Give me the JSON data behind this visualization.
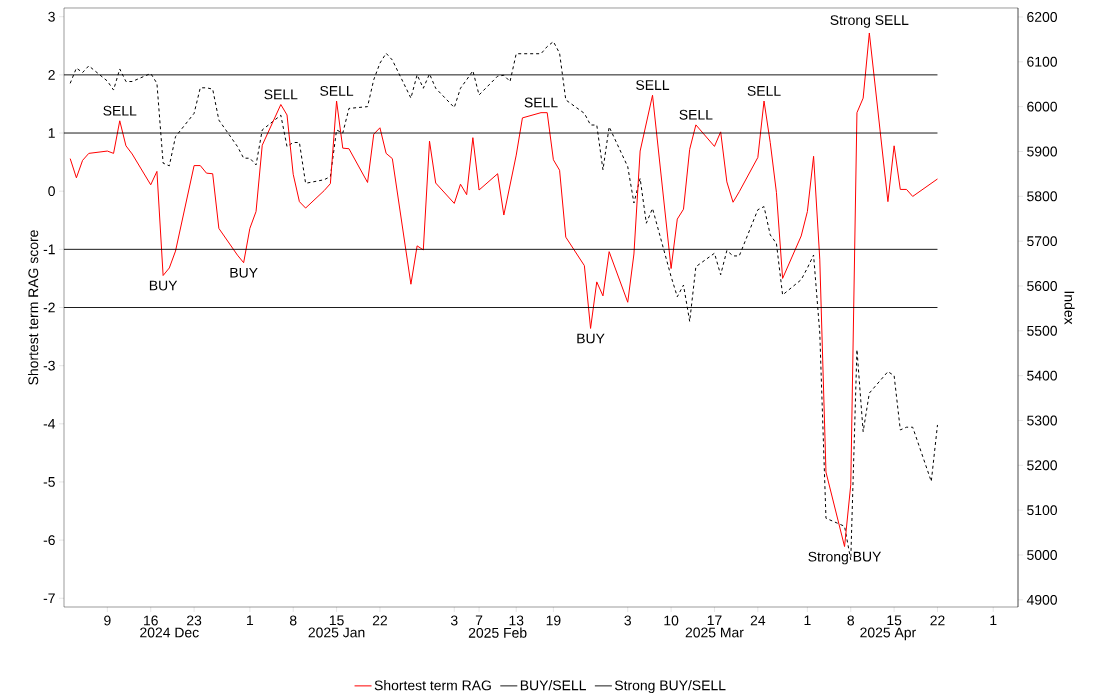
{
  "chart_data": {
    "type": "line",
    "ylabel": "Shortest term RAG score",
    "y2label": "Index",
    "xlim": [
      "2024-12-02",
      "2025-05-05"
    ],
    "ylim": [
      -7.15,
      3.15
    ],
    "y2lim": [
      4884,
      6220
    ],
    "xticks": [
      {
        "value": "2024-12-09",
        "label": "9"
      },
      {
        "value": "2024-12-16",
        "label": "16"
      },
      {
        "value": "2024-12-23",
        "label": "23"
      },
      {
        "value": "2025-01-01",
        "label": "1"
      },
      {
        "value": "2025-01-08",
        "label": "8"
      },
      {
        "value": "2025-01-15",
        "label": "15"
      },
      {
        "value": "2025-01-22",
        "label": "22"
      },
      {
        "value": "2025-02-03",
        "label": "3"
      },
      {
        "value": "2025-02-07",
        "label": "7"
      },
      {
        "value": "2025-02-13",
        "label": "13"
      },
      {
        "value": "2025-02-19",
        "label": "19"
      },
      {
        "value": "2025-03-03",
        "label": "3"
      },
      {
        "value": "2025-03-10",
        "label": "10"
      },
      {
        "value": "2025-03-17",
        "label": "17"
      },
      {
        "value": "2025-03-24",
        "label": "24"
      },
      {
        "value": "2025-04-01",
        "label": "1"
      },
      {
        "value": "2025-04-08",
        "label": "8"
      },
      {
        "value": "2025-04-15",
        "label": "15"
      },
      {
        "value": "2025-04-22",
        "label": "22"
      },
      {
        "value": "2025-05-01",
        "label": "1"
      }
    ],
    "x2lim": [
      "2024-12-02",
      "2025-05-05"
    ],
    "x2ticks": [
      {
        "value": "2024-12-19",
        "label": "2024 Dec"
      },
      {
        "value": "2025-01-15",
        "label": "2025 Jan"
      },
      {
        "value": "2025-02-10",
        "label": "2025 Feb"
      },
      {
        "value": "2025-03-17",
        "label": "2025 Mar"
      },
      {
        "value": "2025-04-14",
        "label": "2025 Apr"
      }
    ],
    "yticks": [
      -7,
      -6,
      -5,
      -4,
      -3,
      -2,
      -1,
      0,
      1,
      2,
      3
    ],
    "y2ticks": [
      4900,
      5000,
      5100,
      5200,
      5300,
      5400,
      5500,
      5600,
      5700,
      5800,
      5900,
      6000,
      6100,
      6200
    ],
    "series": [
      {
        "name": "Shortest term RAG",
        "color": "#ff0000",
        "line_style": "solid",
        "x": [
          "2024-12-03",
          "2024-12-04",
          "2024-12-05",
          "2024-12-06",
          "2024-12-09",
          "2024-12-10",
          "2024-12-11",
          "2024-12-12",
          "2024-12-13",
          "2024-12-16",
          "2024-12-17",
          "2024-12-18",
          "2024-12-19",
          "2024-12-20",
          "2024-12-23",
          "2024-12-24",
          "2024-12-25",
          "2024-12-26",
          "2024-12-27",
          "2024-12-30",
          "2024-12-31",
          "2025-01-01",
          "2025-01-02",
          "2025-01-03",
          "2025-01-06",
          "2025-01-07",
          "2025-01-08",
          "2025-01-09",
          "2025-01-10",
          "2025-01-13",
          "2025-01-14",
          "2025-01-15",
          "2025-01-16",
          "2025-01-17",
          "2025-01-20",
          "2025-01-21",
          "2025-01-22",
          "2025-01-23",
          "2025-01-24",
          "2025-01-27",
          "2025-01-28",
          "2025-01-29",
          "2025-01-30",
          "2025-01-31",
          "2025-02-03",
          "2025-02-04",
          "2025-02-05",
          "2025-02-06",
          "2025-02-07",
          "2025-02-10",
          "2025-02-11",
          "2025-02-13",
          "2025-02-14",
          "2025-02-17",
          "2025-02-18",
          "2025-02-19",
          "2025-02-20",
          "2025-02-21",
          "2025-02-24",
          "2025-02-25",
          "2025-02-26",
          "2025-02-27",
          "2025-02-28",
          "2025-03-03",
          "2025-03-04",
          "2025-03-05",
          "2025-03-07",
          "2025-03-10",
          "2025-03-11",
          "2025-03-12",
          "2025-03-13",
          "2025-03-14",
          "2025-03-17",
          "2025-03-18",
          "2025-03-19",
          "2025-03-20",
          "2025-03-21",
          "2025-03-24",
          "2025-03-25",
          "2025-03-26",
          "2025-03-27",
          "2025-03-28",
          "2025-03-31",
          "2025-04-01",
          "2025-04-02",
          "2025-04-03",
          "2025-04-04",
          "2025-04-07",
          "2025-04-08",
          "2025-04-09",
          "2025-04-10",
          "2025-04-11",
          "2025-04-14",
          "2025-04-15",
          "2025-04-16",
          "2025-04-17",
          "2025-04-18",
          "2025-04-22"
        ],
        "values": [
          0.56,
          0.23,
          0.53,
          0.65,
          0.69,
          0.65,
          1.21,
          0.78,
          0.64,
          0.11,
          0.34,
          -1.45,
          -1.32,
          -1.03,
          0.44,
          0.44,
          0.31,
          0.3,
          -0.64,
          -1.1,
          -1.23,
          -0.64,
          -0.35,
          0.79,
          1.49,
          1.31,
          0.29,
          -0.18,
          -0.29,
          0.01,
          0.13,
          1.55,
          0.74,
          0.73,
          0.15,
          0.98,
          1.09,
          0.65,
          0.56,
          -1.6,
          -0.94,
          -1.01,
          0.86,
          0.14,
          -0.21,
          0.12,
          -0.06,
          0.92,
          0.02,
          0.3,
          -0.41,
          0.62,
          1.26,
          1.35,
          1.35,
          0.54,
          0.36,
          -0.79,
          -1.28,
          -2.36,
          -1.56,
          -1.8,
          -1.04,
          -1.91,
          -1.08,
          0.69,
          1.65,
          -1.33,
          -0.48,
          -0.31,
          0.72,
          1.14,
          0.77,
          1.02,
          0.16,
          -0.19,
          -0.01,
          0.58,
          1.55,
          0.84,
          -0.02,
          -1.5,
          -0.77,
          -0.35,
          0.6,
          -1.17,
          -4.83,
          -6.11,
          -5.05,
          1.35,
          1.6,
          2.72,
          -0.18,
          0.78,
          0.03,
          0.03,
          -0.09,
          0.21
        ]
      },
      {
        "color": "#000000",
        "line_style": "dashed",
        "axis": "y2",
        "x": [
          "2024-12-03",
          "2024-12-04",
          "2024-12-05",
          "2024-12-06",
          "2024-12-09",
          "2024-12-10",
          "2024-12-11",
          "2024-12-12",
          "2024-12-13",
          "2024-12-16",
          "2024-12-17",
          "2024-12-18",
          "2024-12-19",
          "2024-12-20",
          "2024-12-23",
          "2024-12-24",
          "2024-12-25",
          "2024-12-26",
          "2024-12-27",
          "2024-12-30",
          "2024-12-31",
          "2025-01-01",
          "2025-01-02",
          "2025-01-03",
          "2025-01-06",
          "2025-01-07",
          "2025-01-08",
          "2025-01-09",
          "2025-01-10",
          "2025-01-13",
          "2025-01-14",
          "2025-01-15",
          "2025-01-16",
          "2025-01-17",
          "2025-01-20",
          "2025-01-21",
          "2025-01-22",
          "2025-01-23",
          "2025-01-24",
          "2025-01-27",
          "2025-01-28",
          "2025-01-29",
          "2025-01-30",
          "2025-01-31",
          "2025-02-03",
          "2025-02-04",
          "2025-02-05",
          "2025-02-06",
          "2025-02-07",
          "2025-02-10",
          "2025-02-11",
          "2025-02-12",
          "2025-02-13",
          "2025-02-14",
          "2025-02-17",
          "2025-02-18",
          "2025-02-19",
          "2025-02-20",
          "2025-02-21",
          "2025-02-24",
          "2025-02-25",
          "2025-02-26",
          "2025-02-27",
          "2025-02-28",
          "2025-03-03",
          "2025-03-04",
          "2025-03-05",
          "2025-03-06",
          "2025-03-07",
          "2025-03-10",
          "2025-03-11",
          "2025-03-12",
          "2025-03-13",
          "2025-03-14",
          "2025-03-17",
          "2025-03-18",
          "2025-03-19",
          "2025-03-20",
          "2025-03-21",
          "2025-03-24",
          "2025-03-25",
          "2025-03-26",
          "2025-03-27",
          "2025-03-28",
          "2025-03-31",
          "2025-04-01",
          "2025-04-02",
          "2025-04-03",
          "2025-04-04",
          "2025-04-07",
          "2025-04-08",
          "2025-04-09",
          "2025-04-10",
          "2025-04-11",
          "2025-04-14",
          "2025-04-15",
          "2025-04-16",
          "2025-04-17",
          "2025-04-18",
          "2025-04-21",
          "2025-04-22"
        ],
        "values": [
          6052,
          6086,
          6076,
          6091,
          6057,
          6037,
          6084,
          6056,
          6056,
          6074,
          6052,
          5874,
          5868,
          5933,
          5985,
          6042,
          6042,
          6039,
          5970,
          5911,
          5885,
          5885,
          5870,
          5948,
          5981,
          5911,
          5920,
          5920,
          5829,
          5837,
          5844,
          5948,
          5941,
          5996,
          6000,
          6060,
          6097,
          6119,
          6104,
          6019,
          6071,
          6041,
          6073,
          6041,
          5998,
          6041,
          6060,
          6080,
          6026,
          6068,
          6070,
          6056,
          6118,
          6118,
          6118,
          6134,
          6145,
          6119,
          6015,
          5985,
          5959,
          5959,
          5859,
          5955,
          5866,
          5785,
          5840,
          5740,
          5773,
          5621,
          5576,
          5602,
          5521,
          5643,
          5673,
          5625,
          5679,
          5667,
          5667,
          5770,
          5777,
          5714,
          5695,
          5580,
          5614,
          5640,
          5669,
          5495,
          5082,
          5064,
          4989,
          5458,
          5275,
          5361,
          5409,
          5400,
          5279,
          5285,
          5285,
          5164,
          5290
        ]
      }
    ],
    "ref_lines": [
      {
        "axis": "y",
        "value": 1,
        "label": "BUY/SELL",
        "color": "#000000"
      },
      {
        "axis": "y",
        "value": 2,
        "label": "Strong BUY/SELL",
        "color": "#000000"
      },
      {
        "axis": "y",
        "value": -1,
        "color": "#000000"
      },
      {
        "axis": "y",
        "value": -2,
        "color": "#000000"
      }
    ],
    "annotations": [
      {
        "text": "SELL",
        "x": "2024-12-11",
        "y": 1.21
      },
      {
        "text": "BUY",
        "x": "2024-12-18",
        "y": -1.45
      },
      {
        "text": "BUY",
        "x": "2024-12-31",
        "y": -1.23
      },
      {
        "text": "SELL",
        "x": "2025-01-06",
        "y": 1.49
      },
      {
        "text": "SELL",
        "x": "2025-01-15",
        "y": 1.55
      },
      {
        "text": "SELL",
        "x": "2025-02-17",
        "y": 1.35
      },
      {
        "text": "BUY",
        "x": "2025-02-25",
        "y": -2.36
      },
      {
        "text": "SELL",
        "x": "2025-03-07",
        "y": 1.65
      },
      {
        "text": "SELL",
        "x": "2025-03-14",
        "y": 1.14
      },
      {
        "text": "SELL",
        "x": "2025-03-25",
        "y": 1.55
      },
      {
        "text": "Strong SELL",
        "x": "2025-04-11",
        "y": 2.72
      },
      {
        "text": "Strong BUY",
        "x": "2025-04-07",
        "y": -6.11
      }
    ],
    "legend": "bottom",
    "grid": false,
    "marker": "none"
  }
}
